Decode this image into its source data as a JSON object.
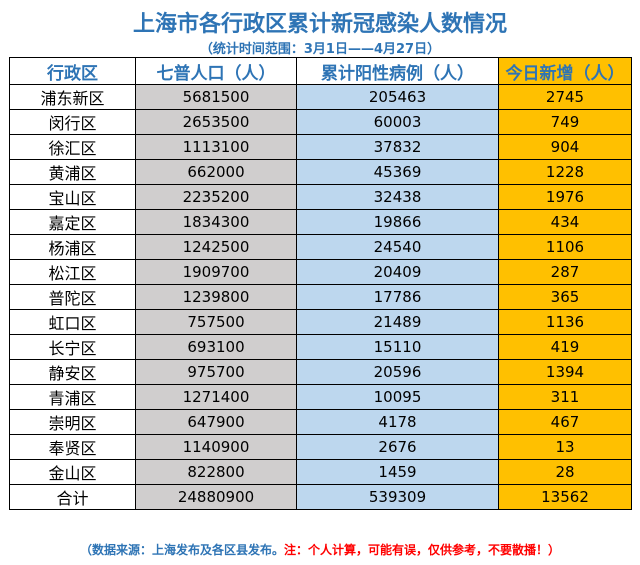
{
  "title": "上海市各行政区累计新冠感染人数情况",
  "subtitle": "（统计时间范围：3月1日——4月27日）",
  "headers": {
    "district": "行政区",
    "population": "七普人口（人）",
    "cumulative": "累计阳性病例（人）",
    "today": "今日新增（人）"
  },
  "rows": [
    {
      "district": "浦东新区",
      "population": "5681500",
      "cumulative": "205463",
      "today": "2745"
    },
    {
      "district": "闵行区",
      "population": "2653500",
      "cumulative": "60003",
      "today": "749"
    },
    {
      "district": "徐汇区",
      "population": "1113100",
      "cumulative": "37832",
      "today": "904"
    },
    {
      "district": "黄浦区",
      "population": "662000",
      "cumulative": "45369",
      "today": "1228"
    },
    {
      "district": "宝山区",
      "population": "2235200",
      "cumulative": "32438",
      "today": "1976"
    },
    {
      "district": "嘉定区",
      "population": "1834300",
      "cumulative": "19866",
      "today": "434"
    },
    {
      "district": "杨浦区",
      "population": "1242500",
      "cumulative": "24540",
      "today": "1106"
    },
    {
      "district": "松江区",
      "population": "1909700",
      "cumulative": "20409",
      "today": "287"
    },
    {
      "district": "普陀区",
      "population": "1239800",
      "cumulative": "17786",
      "today": "365"
    },
    {
      "district": "虹口区",
      "population": "757500",
      "cumulative": "21489",
      "today": "1136"
    },
    {
      "district": "长宁区",
      "population": "693100",
      "cumulative": "15110",
      "today": "419"
    },
    {
      "district": "静安区",
      "population": "975700",
      "cumulative": "20596",
      "today": "1394"
    },
    {
      "district": "青浦区",
      "population": "1271400",
      "cumulative": "10095",
      "today": "311"
    },
    {
      "district": "崇明区",
      "population": "647900",
      "cumulative": "4178",
      "today": "467"
    },
    {
      "district": "奉贤区",
      "population": "1140900",
      "cumulative": "2676",
      "today": "13"
    },
    {
      "district": "金山区",
      "population": "822800",
      "cumulative": "1459",
      "today": "28"
    }
  ],
  "total": {
    "district": "合计",
    "population": "24880900",
    "cumulative": "539309",
    "today": "13562"
  },
  "footer": {
    "source": "（数据来源：上海发布及各区县发布。",
    "note": "注：个人计算，可能有误，仅供参考，不要散播！）"
  },
  "colors": {
    "title": "#2e74b5",
    "population_col": "#d0cece",
    "cumulative_col": "#bdd7ee",
    "today_col": "#ffc000",
    "note": "#ff0000"
  }
}
